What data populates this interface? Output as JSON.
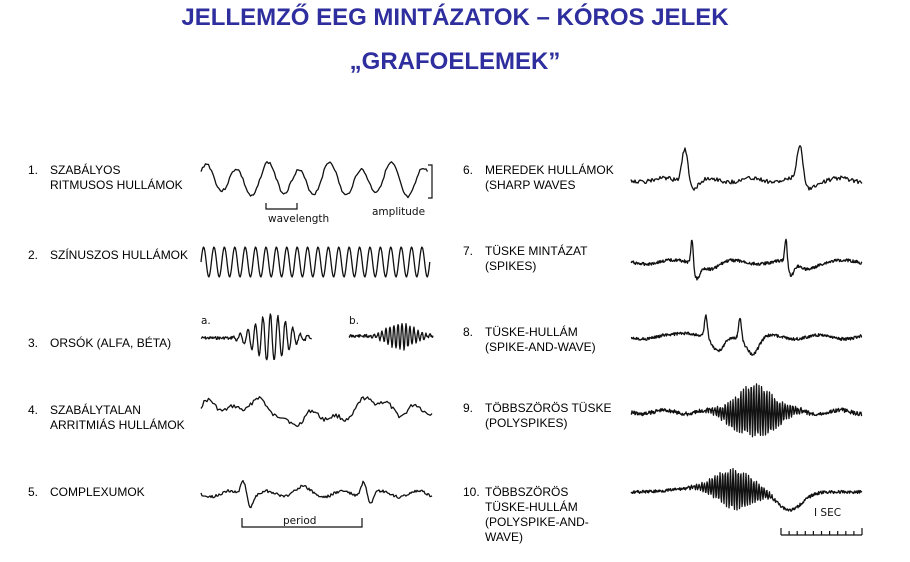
{
  "title": {
    "line1": "JELLEMZŐ EEG MINTÁZATOK – KÓROS JELEK",
    "line2": "„GRAFOELEMEK”"
  },
  "items": [
    {
      "number": "1.",
      "lines": [
        "SZABÁLYOS",
        "RITMUSOS HULLÁMOK"
      ]
    },
    {
      "number": "2.",
      "lines": [
        "SZÍNUSZOS HULLÁMOK"
      ]
    },
    {
      "number": "3.",
      "lines": [
        "ORSÓK  (ALFA, BÉTA)"
      ]
    },
    {
      "number": "4.",
      "lines": [
        "SZABÁLYTALAN",
        "ARRITMIÁS HULLÁMOK"
      ]
    },
    {
      "number": "5.",
      "lines": [
        "COMPLEXUMOK"
      ]
    },
    {
      "number": "6.",
      "lines": [
        "MEREDEK HULLÁMOK",
        "(SHARP WAVES"
      ]
    },
    {
      "number": "7.",
      "lines": [
        "TÜSKE MINTÁZAT",
        "(SPIKES)"
      ]
    },
    {
      "number": "8.",
      "lines": [
        "TÜSKE-HULLÁM",
        "(SPIKE-AND-WAVE)"
      ]
    },
    {
      "number": "9.",
      "lines": [
        "TÖBBSZÖRÖS TÜSKE",
        "(POLYSPIKES)"
      ]
    },
    {
      "number": "10.",
      "lines": [
        "TÖBBSZÖRÖS",
        "TÜSKE-HULLÁM",
        "(POLYSPIKE-AND-",
        "WAVE)"
      ]
    }
  ],
  "annotations": {
    "wavelength": "wavelength",
    "amplitude": "amplitude",
    "spindle_a": "a.",
    "spindle_b": "b.",
    "period": "period",
    "one_sec": "I SEC"
  }
}
